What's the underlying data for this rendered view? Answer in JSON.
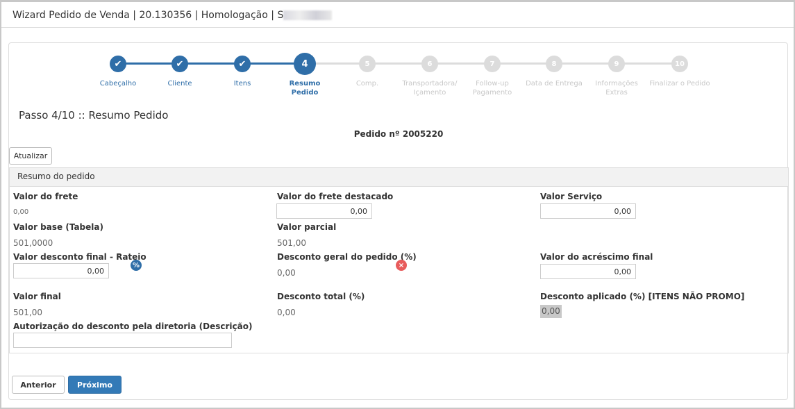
{
  "header": {
    "title": "Wizard Pedido de Venda | 20.130356 | Homologação | S"
  },
  "stepper": {
    "steps": [
      {
        "n": "1",
        "label": "Cabeçalho",
        "state": "done"
      },
      {
        "n": "2",
        "label": "Cliente",
        "state": "done"
      },
      {
        "n": "3",
        "label": "Itens",
        "state": "done"
      },
      {
        "n": "4",
        "label": "Resumo Pedido",
        "state": "current"
      },
      {
        "n": "5",
        "label": "Comp.",
        "state": "pending"
      },
      {
        "n": "6",
        "label": "Transportadora/ Içamento",
        "state": "pending"
      },
      {
        "n": "7",
        "label": "Follow-up Pagamento",
        "state": "pending"
      },
      {
        "n": "8",
        "label": "Data de Entrega",
        "state": "pending"
      },
      {
        "n": "9",
        "label": "Informações Extras",
        "state": "pending"
      },
      {
        "n": "10",
        "label": "Finalizar o Pedido",
        "state": "pending"
      }
    ],
    "colors": {
      "active": "#2f6ea8",
      "pending": "#dcdcdc"
    }
  },
  "page": {
    "step_title": "Passo 4/10 :: Resumo Pedido",
    "order": "Pedido nº 2005220",
    "refresh_button": "Atualizar"
  },
  "summary": {
    "title": "Resumo do pedido",
    "frete_label": "Valor do frete",
    "frete_value": "0,00",
    "frete_destacado_label": "Valor do frete destacado",
    "frete_destacado_value": "0,00",
    "servico_label": "Valor Serviço",
    "servico_value": "0,00",
    "base_label": "Valor base (Tabela)",
    "base_value": "501,0000",
    "parcial_label": "Valor parcial",
    "parcial_value": "501,00",
    "desconto_rateio_label": "Valor desconto final - Rateio",
    "desconto_rateio_value": "0,00",
    "desconto_geral_label": "Desconto geral do pedido (%)",
    "desconto_geral_value": "0,00",
    "acrescimo_label": "Valor do acréscimo final",
    "acrescimo_value": "0,00",
    "final_label": "Valor final",
    "final_value": "501,00",
    "desconto_total_label": "Desconto total (%)",
    "desconto_total_value": "0,00",
    "desconto_aplicado_label": "Desconto aplicado (%) [ITENS NÃO PROMO]",
    "desconto_aplicado_value": "0,00",
    "autorizacao_label": "Autorização do desconto pela diretoria (Descrição)",
    "autorizacao_value": ""
  },
  "footer": {
    "prev": "Anterior",
    "next": "Próximo"
  }
}
